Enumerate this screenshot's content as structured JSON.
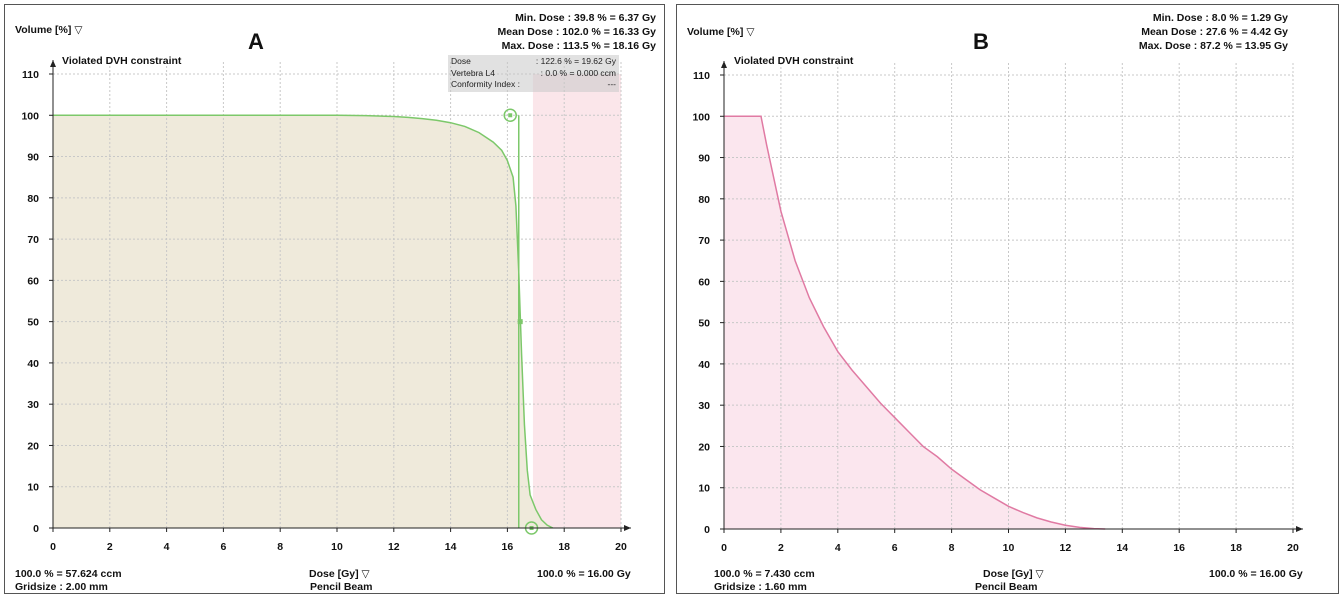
{
  "chart_data": [
    {
      "panel_letter": "A",
      "type": "area",
      "title": "Violated DVH constraint",
      "ylabel": "Volume [%]",
      "xlabel": "Dose [Gy]",
      "xlabel_sub": "Pencil Beam",
      "xlim": [
        0,
        20
      ],
      "ylim": [
        0,
        110
      ],
      "xticks": [
        0,
        2,
        4,
        6,
        8,
        10,
        12,
        14,
        16,
        18,
        20
      ],
      "yticks": [
        0,
        10,
        20,
        30,
        40,
        50,
        60,
        70,
        80,
        90,
        100,
        110
      ],
      "grid": true,
      "color": "#7cc86a",
      "fill_color": "#efeadb",
      "violation_region_color": "#fbe6ea",
      "violation_region_x": [
        16.9,
        20
      ],
      "stats": {
        "min_dose": "Min. Dose : 39.8 % = 6.37 Gy",
        "mean_dose": "Mean Dose : 102.0 % = 16.33 Gy",
        "max_dose": "Max. Dose : 113.5 % = 18.16 Gy"
      },
      "tooltip": [
        {
          "label": "Dose",
          "value": ": 122.6 % = 19.62 Gy"
        },
        {
          "label": "Vertebra L4",
          "value": ":   0.0 % = 0.000 ccm"
        },
        {
          "label": "Conformity Index :",
          "value": "---"
        }
      ],
      "footer_left_1": "100.0 % = 57.624 ccm",
      "footer_left_2": "Gridsize :  2.00 mm",
      "footer_right": "100.0 % = 16.00 Gy",
      "series": [
        {
          "x": [
            0,
            10,
            11,
            12,
            12.5,
            13,
            13.5,
            14,
            14.5,
            15,
            15.5,
            15.8,
            16.0,
            16.2,
            16.3,
            16.4,
            16.5,
            16.6,
            16.7,
            16.8,
            17.0,
            17.2,
            17.4,
            17.6
          ],
          "y": [
            100,
            100,
            99.9,
            99.7,
            99.5,
            99.2,
            98.8,
            98.2,
            97.3,
            95.8,
            93.5,
            91.5,
            89.0,
            85.0,
            78.0,
            62.0,
            42.0,
            25.0,
            14.0,
            8.0,
            4.5,
            2.0,
            0.7,
            0
          ]
        }
      ],
      "constraint_line": {
        "x": 16.4,
        "y": [
          0,
          100
        ]
      },
      "markers": [
        {
          "x": 16.1,
          "y": 100,
          "kind": "circle"
        },
        {
          "x": 16.45,
          "y": 50,
          "kind": "square"
        },
        {
          "x": 16.85,
          "y": 0,
          "kind": "circle"
        }
      ]
    },
    {
      "panel_letter": "B",
      "type": "area",
      "title": "Violated DVH constraint",
      "ylabel": "Volume [%]",
      "xlabel": "Dose [Gy]",
      "xlabel_sub": "Pencil Beam",
      "xlim": [
        0,
        20
      ],
      "ylim": [
        0,
        110
      ],
      "xticks": [
        0,
        2,
        4,
        6,
        8,
        10,
        12,
        14,
        16,
        18,
        20
      ],
      "yticks": [
        0,
        10,
        20,
        30,
        40,
        50,
        60,
        70,
        80,
        90,
        100,
        110
      ],
      "grid": true,
      "color": "#e07aa3",
      "fill_color": "#fbe6ee",
      "stats": {
        "min_dose": "Min. Dose : 8.0 % = 1.29 Gy",
        "mean_dose": "Mean Dose : 27.6 % = 4.42 Gy",
        "max_dose": "Max. Dose : 87.2 % = 13.95 Gy"
      },
      "footer_left_1": "100.0 % = 7.430 ccm",
      "footer_left_2": "Gridsize :  1.60 mm",
      "footer_right": "100.0 % = 16.00 Gy",
      "series": [
        {
          "x": [
            0,
            1.3,
            1.5,
            2.0,
            2.5,
            3.0,
            3.5,
            4.0,
            4.5,
            5.0,
            5.5,
            6.0,
            6.5,
            7.0,
            7.5,
            8.0,
            8.5,
            9.0,
            9.5,
            10.0,
            10.5,
            11.0,
            11.5,
            12.0,
            12.5,
            13.0,
            13.4
          ],
          "y": [
            100,
            100,
            93,
            77,
            65,
            56,
            49,
            43,
            38.5,
            34.5,
            30.5,
            27,
            23.5,
            20,
            17.5,
            14.5,
            12,
            9.5,
            7.5,
            5.5,
            4,
            2.7,
            1.7,
            0.9,
            0.4,
            0.1,
            0
          ]
        }
      ]
    }
  ]
}
